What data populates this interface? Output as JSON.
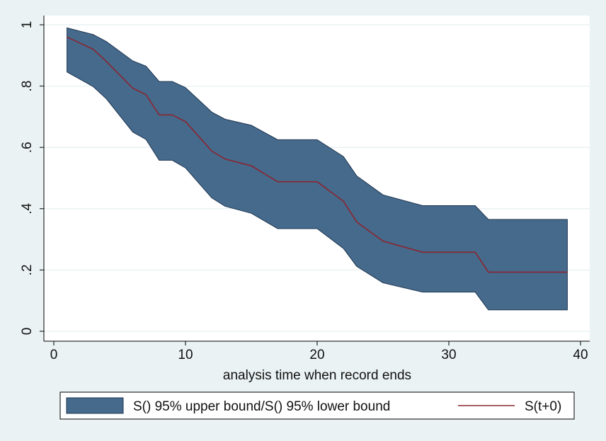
{
  "chart_data": {
    "type": "area",
    "title": "",
    "xlabel": "analysis time when record ends",
    "ylabel": "",
    "xlim": [
      0,
      40
    ],
    "ylim": [
      0,
      1
    ],
    "xticks": [
      0,
      10,
      20,
      30,
      40
    ],
    "xtick_labels": [
      "0",
      "10",
      "20",
      "30",
      "40"
    ],
    "yticks": [
      0,
      0.2,
      0.4,
      0.6,
      0.8,
      1
    ],
    "ytick_labels": [
      "0",
      ".2",
      ".4",
      ".6",
      ".8",
      "1"
    ],
    "grid": true,
    "legend_position": "bottom",
    "colors": {
      "band": "#456a8c",
      "band_edge": "#1f3550",
      "line": "#8b2530",
      "background": "#eaf2f3",
      "plot_bg": "#ffffff",
      "grid": "#eaf2f3"
    },
    "series": [
      {
        "name": "S() 95% upper bound/S() 95% lower bound",
        "kind": "band",
        "upper": [
          [
            1,
            0.99
          ],
          [
            3,
            0.968
          ],
          [
            4,
            0.945
          ],
          [
            6,
            0.882
          ],
          [
            7,
            0.865
          ],
          [
            8,
            0.815
          ],
          [
            9,
            0.815
          ],
          [
            10,
            0.795
          ],
          [
            12,
            0.715
          ],
          [
            13,
            0.692
          ],
          [
            15,
            0.672
          ],
          [
            17,
            0.625
          ],
          [
            20,
            0.625
          ],
          [
            22,
            0.57
          ],
          [
            23,
            0.507
          ],
          [
            25,
            0.445
          ],
          [
            28,
            0.41
          ],
          [
            32,
            0.41
          ],
          [
            33,
            0.365
          ],
          [
            39,
            0.365
          ]
        ],
        "lower": [
          [
            1,
            0.846
          ],
          [
            3,
            0.798
          ],
          [
            4,
            0.758
          ],
          [
            6,
            0.65
          ],
          [
            7,
            0.626
          ],
          [
            8,
            0.558
          ],
          [
            9,
            0.558
          ],
          [
            10,
            0.533
          ],
          [
            12,
            0.435
          ],
          [
            13,
            0.408
          ],
          [
            15,
            0.385
          ],
          [
            17,
            0.335
          ],
          [
            20,
            0.335
          ],
          [
            22,
            0.27
          ],
          [
            23,
            0.212
          ],
          [
            25,
            0.158
          ],
          [
            28,
            0.128
          ],
          [
            32,
            0.128
          ],
          [
            33,
            0.07
          ],
          [
            39,
            0.07
          ]
        ]
      },
      {
        "name": "S(t+0)",
        "kind": "line",
        "points": [
          [
            1,
            0.96
          ],
          [
            3,
            0.92
          ],
          [
            4,
            0.88
          ],
          [
            6,
            0.793
          ],
          [
            7,
            0.772
          ],
          [
            8,
            0.706
          ],
          [
            9,
            0.706
          ],
          [
            10,
            0.684
          ],
          [
            12,
            0.588
          ],
          [
            13,
            0.562
          ],
          [
            15,
            0.54
          ],
          [
            17,
            0.488
          ],
          [
            20,
            0.488
          ],
          [
            22,
            0.424
          ],
          [
            23,
            0.357
          ],
          [
            25,
            0.294
          ],
          [
            28,
            0.258
          ],
          [
            32,
            0.258
          ],
          [
            33,
            0.193
          ],
          [
            39,
            0.193
          ]
        ]
      }
    ]
  }
}
